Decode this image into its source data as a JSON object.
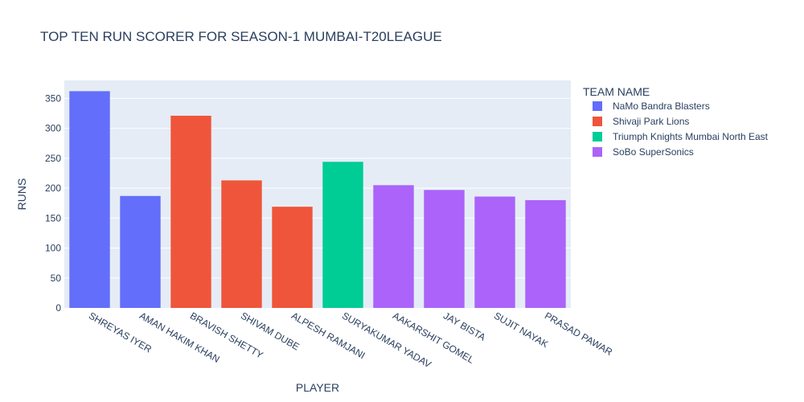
{
  "chart_data": {
    "type": "bar",
    "title": "TOP TEN RUN SCORER FOR SEASON-1 MUMBAI-T20LEAGUE",
    "xlabel": "PLAYER",
    "ylabel": "RUNS",
    "ylim": [
      0,
      380
    ],
    "yticks": [
      0,
      50,
      100,
      150,
      200,
      250,
      300,
      350
    ],
    "grid": true,
    "legend_title": "TEAM NAME",
    "legend_position": "top-right",
    "series": [
      {
        "name": "NaMo Bandra Blasters",
        "color": "#636efa"
      },
      {
        "name": "Shivaji Park Lions",
        "color": "#ef553b"
      },
      {
        "name": "Triumph Knights Mumbai North East",
        "color": "#00cc96"
      },
      {
        "name": "SoBo SuperSonics",
        "color": "#ab63fa"
      }
    ],
    "bars": [
      {
        "player": "SHREYAS IYER",
        "runs": 362,
        "team": "NaMo Bandra Blasters"
      },
      {
        "player": "AMAN HAKIM KHAN",
        "runs": 187,
        "team": "NaMo Bandra Blasters"
      },
      {
        "player": "BRAVISH SHETTY",
        "runs": 321,
        "team": "Shivaji Park Lions"
      },
      {
        "player": "SHIVAM DUBE",
        "runs": 213,
        "team": "Shivaji Park Lions"
      },
      {
        "player": "ALPESH RAMJANI",
        "runs": 169,
        "team": "Shivaji Park Lions"
      },
      {
        "player": "SURYAKUMAR YADAV",
        "runs": 244,
        "team": "Triumph Knights Mumbai North East"
      },
      {
        "player": "AAKARSHIT GOMEL",
        "runs": 205,
        "team": "SoBo SuperSonics"
      },
      {
        "player": "JAY BISTA",
        "runs": 197,
        "team": "SoBo SuperSonics"
      },
      {
        "player": "SUJIT NAYAK",
        "runs": 186,
        "team": "SoBo SuperSonics"
      },
      {
        "player": "PRASAD PAWAR",
        "runs": 180,
        "team": "SoBo SuperSonics"
      }
    ]
  }
}
